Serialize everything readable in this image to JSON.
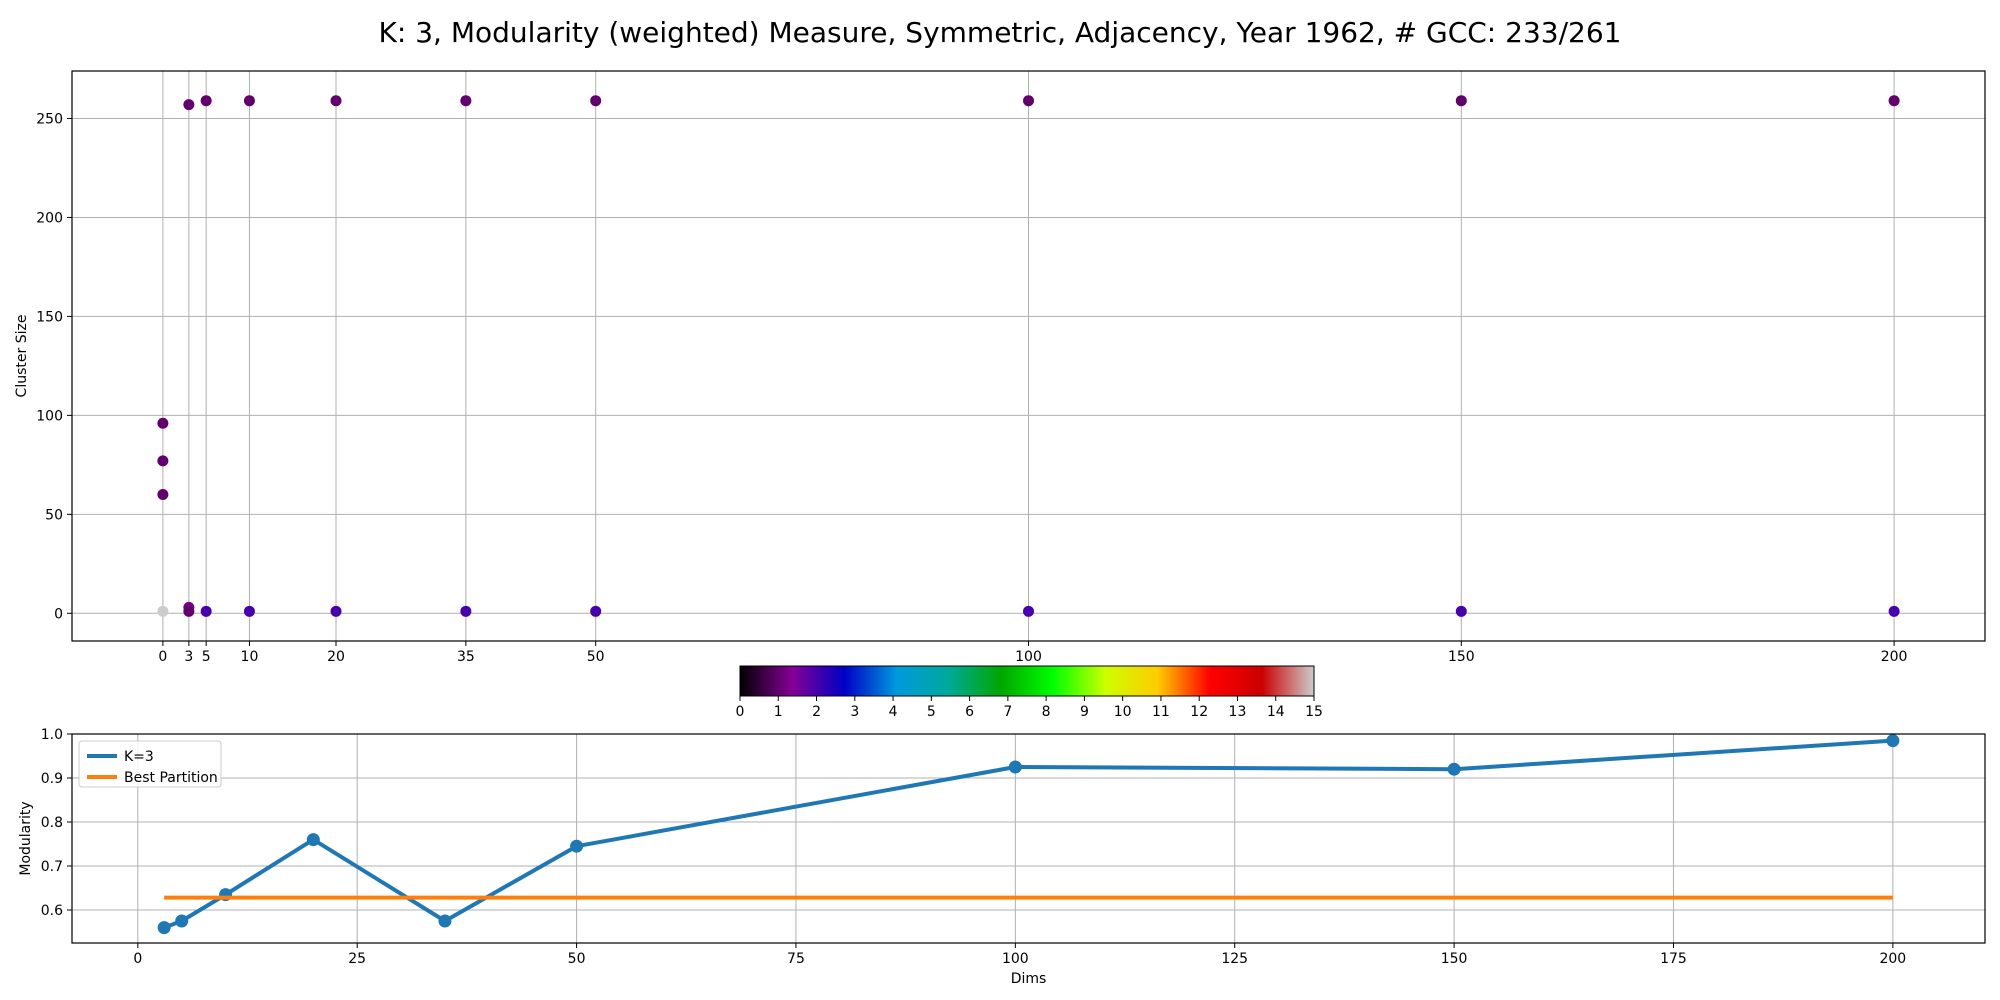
{
  "figure": {
    "title": "K: 3, Modularity (weighted) Measure, Symmetric, Adjacency, Year 1962, # GCC: 233/261"
  },
  "chart_data": [
    {
      "type": "scatter",
      "name": "cluster-size-scatter",
      "xlabel": "",
      "ylabel": "Cluster Size",
      "xticks": [
        0,
        3,
        5,
        10,
        20,
        35,
        50,
        100,
        150,
        200
      ],
      "yticks": [
        0,
        50,
        100,
        150,
        200,
        250
      ],
      "xlim": [
        -10.5,
        210.5
      ],
      "ylim": [
        -14,
        274
      ],
      "grid": true,
      "points": [
        {
          "x": 0,
          "y": 96,
          "c": 1
        },
        {
          "x": 0,
          "y": 77,
          "c": 1
        },
        {
          "x": 0,
          "y": 60,
          "c": 1
        },
        {
          "x": 0,
          "y": 1,
          "c": 15
        },
        {
          "x": 3,
          "y": 257,
          "c": 1
        },
        {
          "x": 3,
          "y": 3,
          "c": 1.2
        },
        {
          "x": 3,
          "y": 1,
          "c": 1
        },
        {
          "x": 5,
          "y": 259,
          "c": 1
        },
        {
          "x": 5,
          "y": 1,
          "c": 2
        },
        {
          "x": 10,
          "y": 259,
          "c": 1
        },
        {
          "x": 10,
          "y": 1,
          "c": 2
        },
        {
          "x": 20,
          "y": 259,
          "c": 1
        },
        {
          "x": 20,
          "y": 1,
          "c": 2
        },
        {
          "x": 35,
          "y": 259,
          "c": 1
        },
        {
          "x": 35,
          "y": 1,
          "c": 2
        },
        {
          "x": 50,
          "y": 259,
          "c": 1
        },
        {
          "x": 50,
          "y": 1,
          "c": 2
        },
        {
          "x": 100,
          "y": 259,
          "c": 1
        },
        {
          "x": 100,
          "y": 1,
          "c": 2
        },
        {
          "x": 150,
          "y": 259,
          "c": 1
        },
        {
          "x": 150,
          "y": 1,
          "c": 2
        },
        {
          "x": 200,
          "y": 259,
          "c": 1
        },
        {
          "x": 200,
          "y": 1,
          "c": 2
        }
      ],
      "colorbar": {
        "ticks": [
          0,
          1,
          2,
          3,
          4,
          5,
          6,
          7,
          8,
          9,
          10,
          11,
          12,
          13,
          14,
          15
        ],
        "range": [
          0,
          15
        ],
        "colormap": "nipy_spectral",
        "stops": [
          "#000000",
          "#850095",
          "#0000c4",
          "#0099dd",
          "#00a99a",
          "#00a600",
          "#00ff00",
          "#ccff00",
          "#ffcc00",
          "#ff0000",
          "#cc0000",
          "#cccccc"
        ]
      }
    },
    {
      "type": "line",
      "name": "modularity-line",
      "xlabel": "Dims",
      "ylabel": "Modularity",
      "xticks": [
        0,
        25,
        50,
        75,
        100,
        125,
        150,
        175,
        200
      ],
      "yticks": [
        0.6,
        0.7,
        0.8,
        0.9,
        1.0
      ],
      "ytick_labels": [
        "0.6",
        "0.7",
        "0.8",
        "0.9",
        "1.0"
      ],
      "xlim": [
        -7.5,
        210.5
      ],
      "ylim": [
        0.525,
        1.0
      ],
      "grid": true,
      "legend": "top-left",
      "series": [
        {
          "name": "K=3",
          "color": "#1f77b4",
          "x": [
            3,
            5,
            10,
            20,
            35,
            50,
            100,
            150,
            200
          ],
          "y": [
            0.56,
            0.575,
            0.635,
            0.76,
            0.575,
            0.745,
            0.925,
            0.92,
            0.985
          ],
          "markers": true
        },
        {
          "name": "Best Partition",
          "color": "#ff7f0e",
          "x": [
            3,
            200
          ],
          "y": [
            0.628,
            0.628
          ],
          "markers": false
        }
      ]
    }
  ]
}
